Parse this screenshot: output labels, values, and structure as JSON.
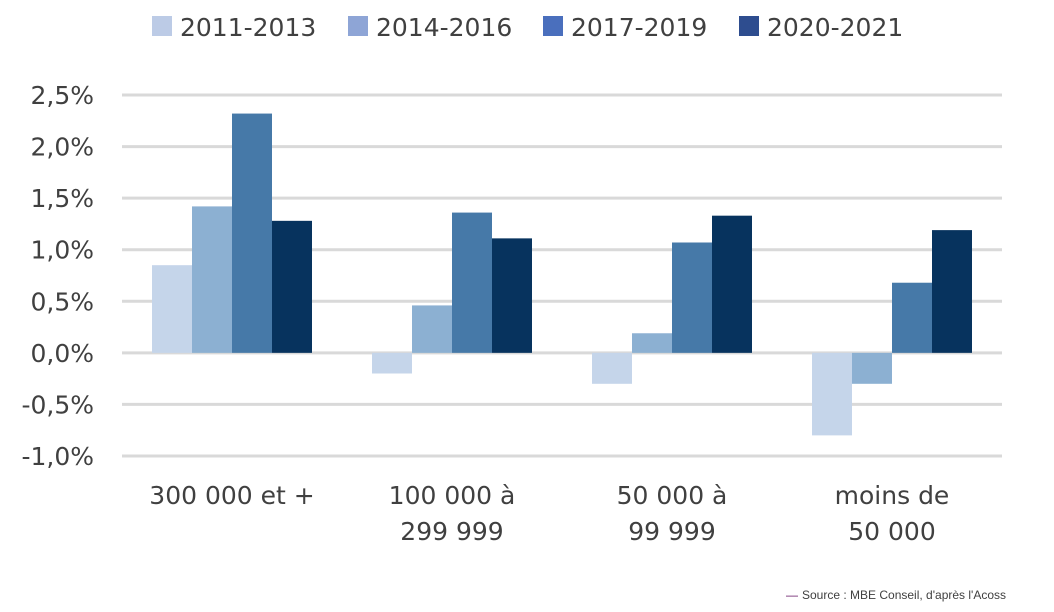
{
  "chart_data": {
    "type": "bar",
    "categories": [
      [
        "300 000 et +"
      ],
      [
        "100 000 à",
        "299 999"
      ],
      [
        "50 000 à",
        "99 999"
      ],
      [
        "moins de",
        "50 000"
      ]
    ],
    "series": [
      {
        "name": "2011-2013",
        "values": [
          0.85,
          -0.2,
          -0.3,
          -0.8
        ],
        "color": "#c5d5ea",
        "legend_color": "#bccbe6"
      },
      {
        "name": "2014-2016",
        "values": [
          1.42,
          0.46,
          0.19,
          -0.3
        ],
        "color": "#8cb0d2",
        "legend_color": "#8ea5d6"
      },
      {
        "name": "2017-2019",
        "values": [
          2.32,
          1.36,
          1.07,
          0.68
        ],
        "color": "#4679a8",
        "legend_color": "#4a6fbd"
      },
      {
        "name": "2020-2021",
        "values": [
          1.28,
          1.11,
          1.33,
          1.19
        ],
        "color": "#07335e",
        "legend_color": "#2e4d8f"
      }
    ],
    "ylim": [
      -1.0,
      2.5
    ],
    "yticks": [
      2.5,
      2.0,
      1.5,
      1.0,
      0.5,
      0.0,
      -0.5,
      -1.0
    ],
    "ytick_labels": [
      "2,5%",
      "2,0%",
      "1,5%",
      "1,0%",
      "0,5%",
      "0,0%",
      "-0,5%",
      "-1,0%"
    ],
    "grid": true,
    "legend_position": "top"
  },
  "source": {
    "dash": "—",
    "text": "Source : MBE Conseil, d'après l'Acoss"
  }
}
